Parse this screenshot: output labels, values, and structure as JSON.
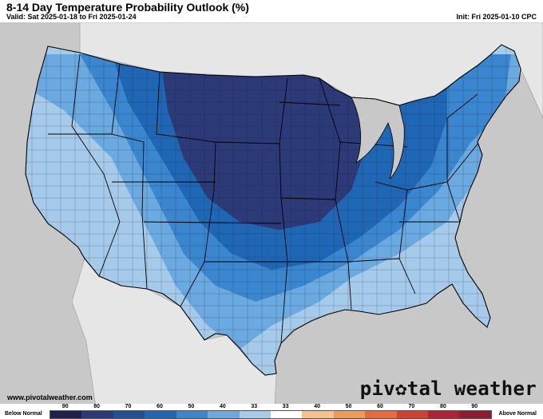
{
  "header": {
    "title": "8-14 Day Temperature Probability Outlook (%)",
    "valid": "Valid: Sat 2025-01-18 to Fri 2025-01-24",
    "init": "Init: Fri 2025-01-10 CPC"
  },
  "footer": {
    "url": "www.pivotalweather.com",
    "brand_part1": "piv",
    "brand_part2": "tal weather"
  },
  "legend": {
    "below_label": "Below Normal",
    "above_label": "Above Normal",
    "tick_labels": [
      "90",
      "80",
      "70",
      "60",
      "50",
      "40",
      "33",
      "33",
      "40",
      "50",
      "60",
      "70",
      "80",
      "90"
    ],
    "colors": [
      "#20204f",
      "#2c3a78",
      "#1f4f95",
      "#1f67b4",
      "#3a86cf",
      "#6aaae0",
      "#a6cbea",
      "#ffffff",
      "#f6c28a",
      "#f19a55",
      "#e8693a",
      "#d4402f",
      "#b32230",
      "#8f1c33"
    ]
  },
  "map": {
    "background_color": "#c8c8c8",
    "land_color": "#ffffff",
    "water_color": "#c8c8c8"
  }
}
